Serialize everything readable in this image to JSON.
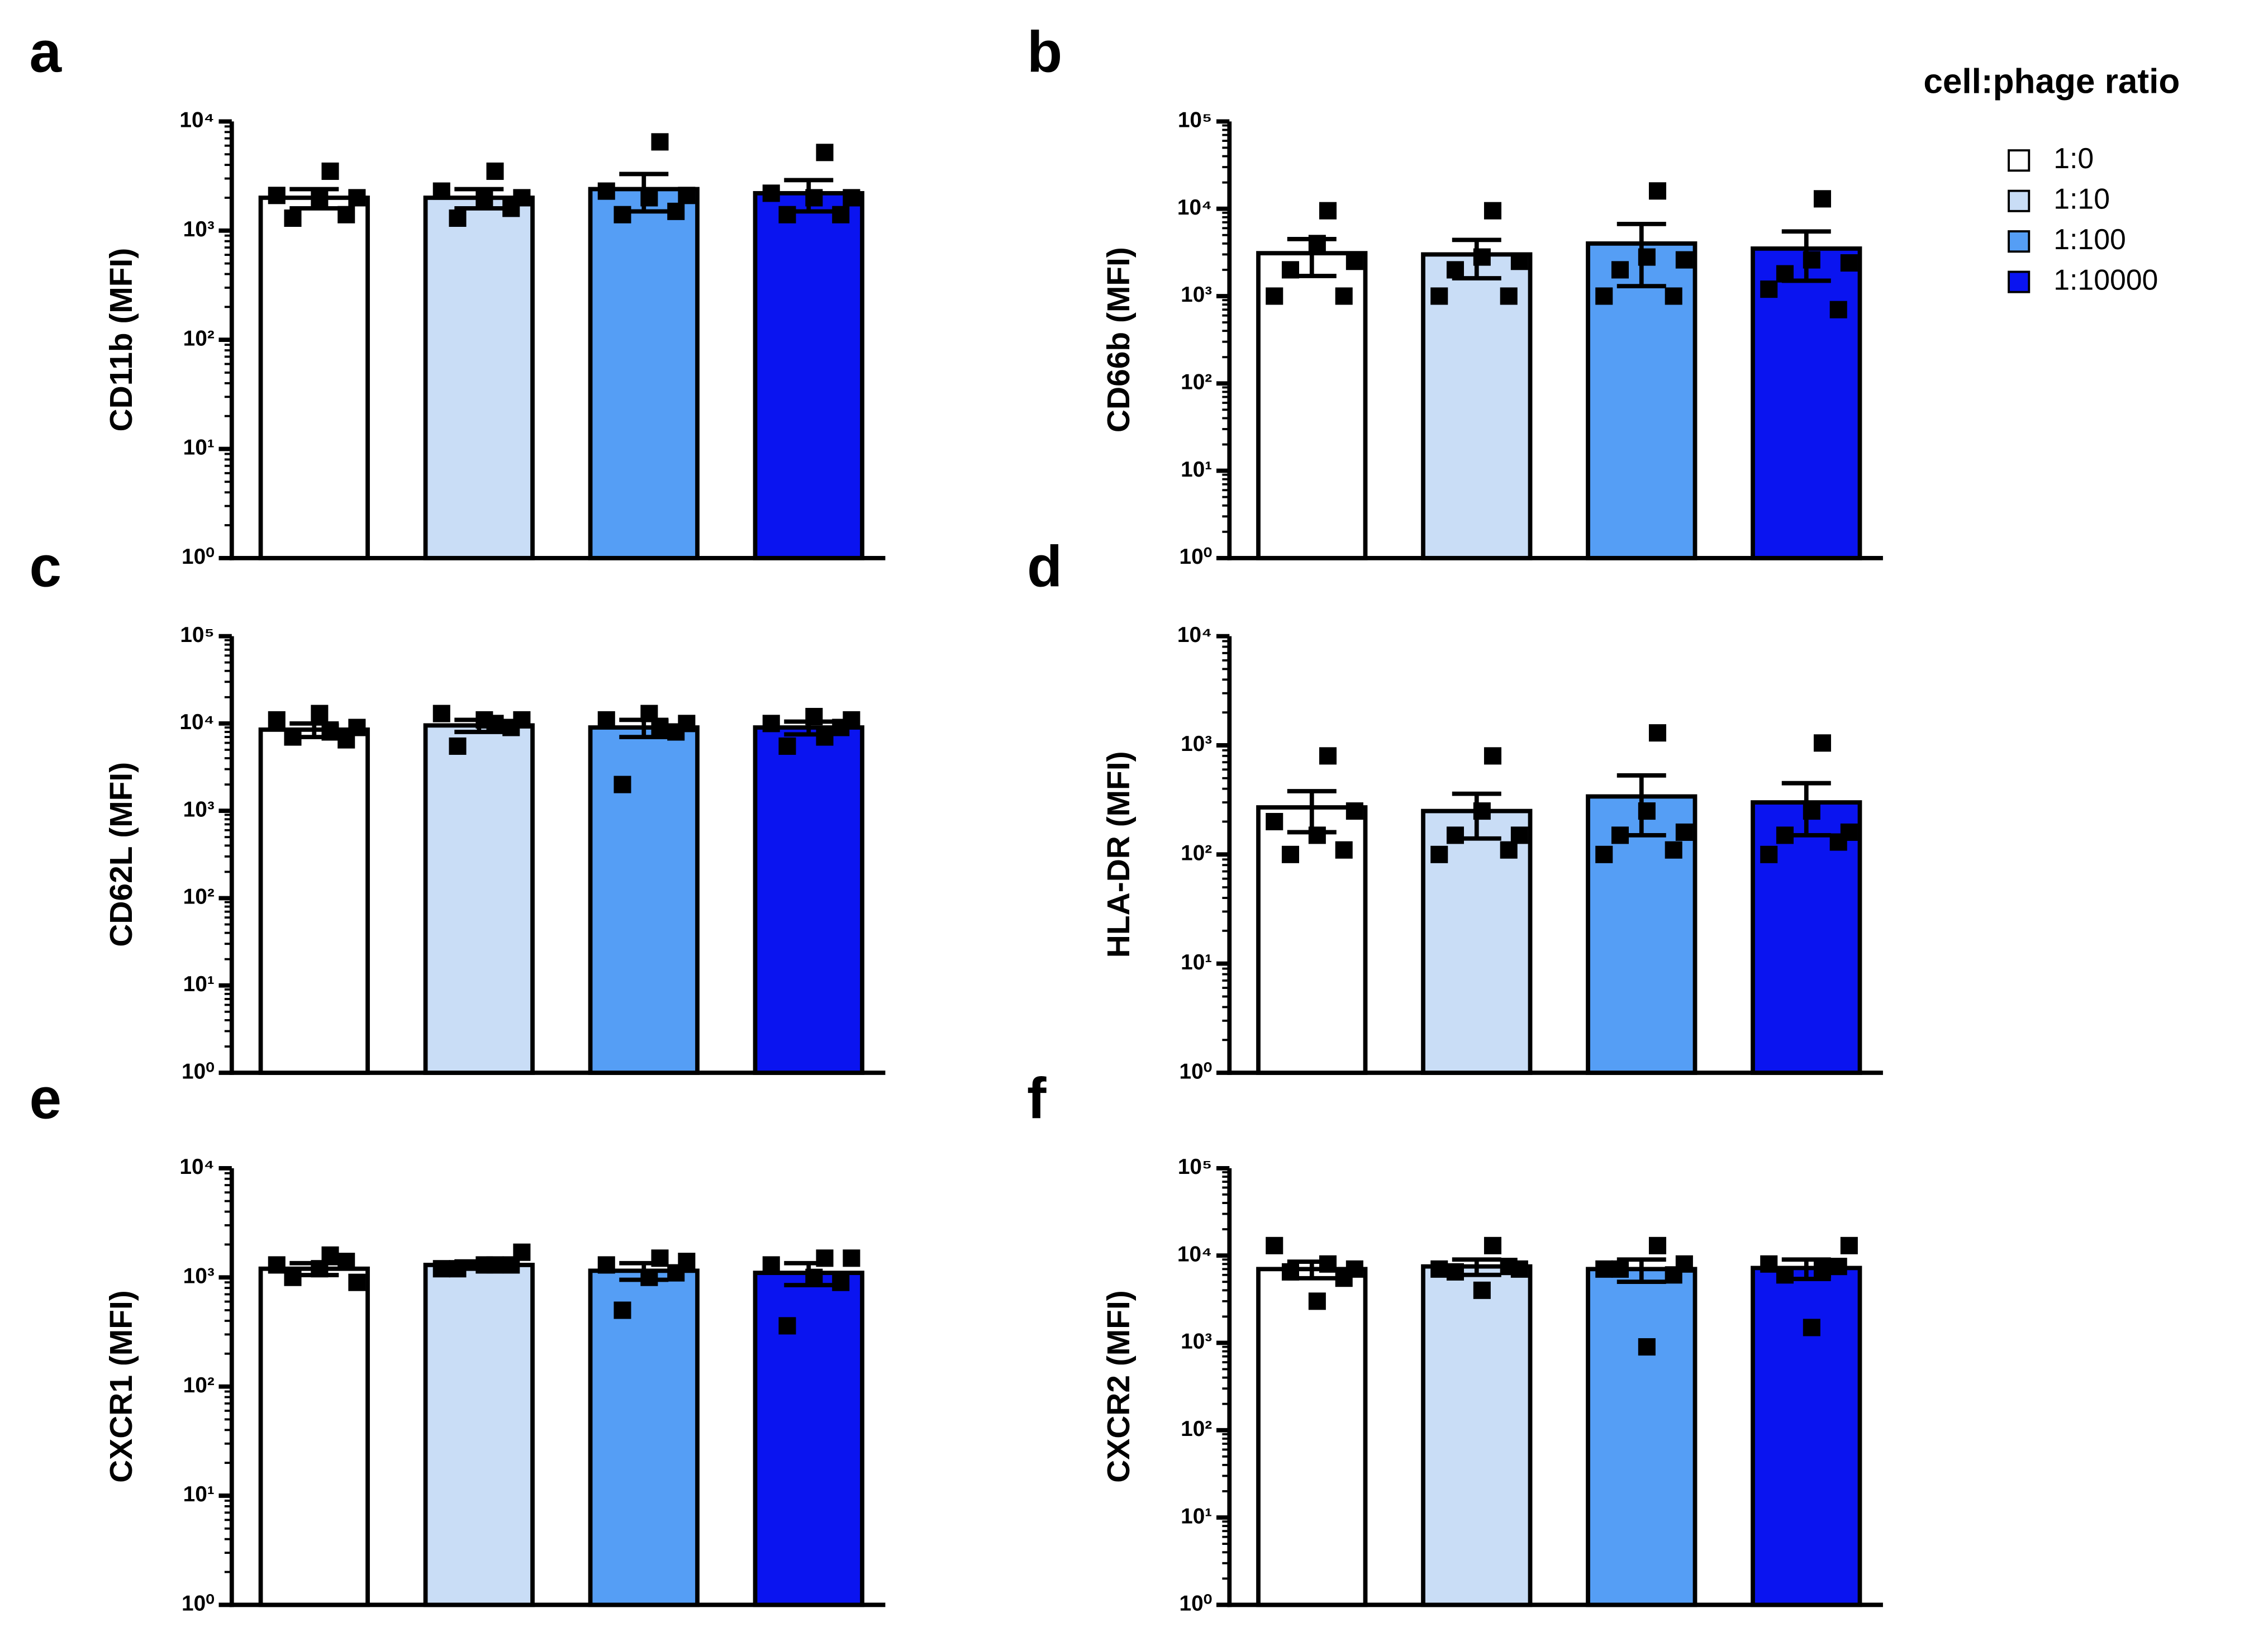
{
  "legend": {
    "title": "cell:phage ratio",
    "names": [
      "1:0",
      "1:10",
      "1:100",
      "1:10000"
    ],
    "colors": [
      "#ffffff",
      "#c9ddf6",
      "#559ef5",
      "#0a14f0"
    ]
  },
  "chart_data": [
    {
      "type": "bar",
      "panel_label": "a",
      "ylabel": "CD11b (MFI)",
      "log_scale": true,
      "ylim": [
        1,
        10000
      ],
      "yticks": [
        {
          "value": 1,
          "label": "10⁰"
        },
        {
          "value": 10,
          "label": "10¹"
        },
        {
          "value": 100,
          "label": "10²"
        },
        {
          "value": 1000,
          "label": "10³"
        },
        {
          "value": 10000,
          "label": "10⁴"
        }
      ],
      "values": [
        2000,
        2000,
        2400,
        2200
      ],
      "errors": [
        400,
        400,
        900,
        700
      ],
      "points": [
        [
          2100,
          3500,
          2000,
          1300,
          1400,
          2000
        ],
        [
          2300,
          3500,
          2000,
          1300,
          1600,
          2000
        ],
        [
          2300,
          6500,
          2000,
          1400,
          1500,
          2100
        ],
        [
          2200,
          5200,
          2000,
          1400,
          1400,
          2000
        ]
      ]
    },
    {
      "type": "bar",
      "panel_label": "b",
      "ylabel": "CD66b (MFI)",
      "log_scale": true,
      "ylim": [
        1,
        100000
      ],
      "yticks": [
        {
          "value": 1,
          "label": "10⁰"
        },
        {
          "value": 10,
          "label": "10¹"
        },
        {
          "value": 100,
          "label": "10²"
        },
        {
          "value": 1000,
          "label": "10³"
        },
        {
          "value": 10000,
          "label": "10⁴"
        },
        {
          "value": 100000,
          "label": "10⁵"
        }
      ],
      "values": [
        3100,
        3000,
        4000,
        3500
      ],
      "errors": [
        1400,
        1400,
        2700,
        2000
      ],
      "points": [
        [
          1000,
          9500,
          4000,
          2000,
          1000,
          2500
        ],
        [
          1000,
          9500,
          2800,
          2000,
          1000,
          2500
        ],
        [
          1000,
          16000,
          2800,
          2000,
          1000,
          2600
        ],
        [
          1200,
          13000,
          2600,
          1800,
          700,
          2400
        ]
      ]
    },
    {
      "type": "bar",
      "panel_label": "c",
      "ylabel": "CD62L (MFI)",
      "log_scale": true,
      "ylim": [
        1,
        100000
      ],
      "yticks": [
        {
          "value": 1,
          "label": "10⁰"
        },
        {
          "value": 10,
          "label": "10¹"
        },
        {
          "value": 100,
          "label": "10²"
        },
        {
          "value": 1000,
          "label": "10³"
        },
        {
          "value": 10000,
          "label": "10⁴"
        },
        {
          "value": 100000,
          "label": "10⁵"
        }
      ],
      "values": [
        8500,
        9500,
        9000,
        9000
      ],
      "errors": [
        1500,
        1500,
        2000,
        1500
      ],
      "points": [
        [
          11000,
          8000,
          13000,
          7000,
          6500,
          9000
        ],
        [
          13000,
          10000,
          11000,
          5500,
          9000,
          11000
        ],
        [
          11000,
          9000,
          13000,
          2000,
          8000,
          10000
        ],
        [
          10000,
          7000,
          12000,
          5500,
          9000,
          11000
        ]
      ]
    },
    {
      "type": "bar",
      "panel_label": "d",
      "ylabel": "HLA-DR (MFI)",
      "log_scale": true,
      "ylim": [
        1,
        10000
      ],
      "yticks": [
        {
          "value": 1,
          "label": "10⁰"
        },
        {
          "value": 10,
          "label": "10¹"
        },
        {
          "value": 100,
          "label": "10²"
        },
        {
          "value": 1000,
          "label": "10³"
        },
        {
          "value": 10000,
          "label": "10⁴"
        }
      ],
      "values": [
        270,
        250,
        340,
        300
      ],
      "errors": [
        110,
        110,
        190,
        150
      ],
      "points": [
        [
          200,
          800,
          150,
          100,
          110,
          250
        ],
        [
          100,
          800,
          250,
          150,
          110,
          150
        ],
        [
          100,
          1300,
          250,
          150,
          110,
          160
        ],
        [
          100,
          1050,
          250,
          150,
          130,
          160
        ]
      ]
    },
    {
      "type": "bar",
      "panel_label": "e",
      "ylabel": "CXCR1 (MFI)",
      "log_scale": true,
      "ylim": [
        1,
        10000
      ],
      "yticks": [
        {
          "value": 1,
          "label": "10⁰"
        },
        {
          "value": 10,
          "label": "10¹"
        },
        {
          "value": 100,
          "label": "10²"
        },
        {
          "value": 1000,
          "label": "10³"
        },
        {
          "value": 10000,
          "label": "10⁴"
        }
      ],
      "values": [
        1200,
        1300,
        1150,
        1100
      ],
      "errors": [
        150,
        100,
        200,
        250
      ],
      "points": [
        [
          1300,
          1600,
          1200,
          1000,
          1400,
          900
        ],
        [
          1200,
          1300,
          1300,
          1200,
          1300,
          1700
        ],
        [
          1300,
          1500,
          1000,
          500,
          1100,
          1400
        ],
        [
          1300,
          1500,
          1000,
          360,
          900,
          1500
        ]
      ]
    },
    {
      "type": "bar",
      "panel_label": "f",
      "ylabel": "CXCR2 (MFI)",
      "log_scale": true,
      "ylim": [
        1,
        100000
      ],
      "yticks": [
        {
          "value": 1,
          "label": "10⁰"
        },
        {
          "value": 10,
          "label": "10¹"
        },
        {
          "value": 100,
          "label": "10²"
        },
        {
          "value": 1000,
          "label": "10³"
        },
        {
          "value": 10000,
          "label": "10⁴"
        },
        {
          "value": 100000,
          "label": "10⁵"
        }
      ],
      "values": [
        7000,
        7500,
        7000,
        7200
      ],
      "errors": [
        1500,
        1500,
        2000,
        1800
      ],
      "points": [
        [
          13000,
          8000,
          3000,
          6500,
          5500,
          7000
        ],
        [
          7000,
          13000,
          4000,
          6500,
          7500,
          7000
        ],
        [
          7000,
          13000,
          900,
          7000,
          6000,
          8000
        ],
        [
          8000,
          7000,
          1500,
          6000,
          7500,
          13000
        ]
      ]
    }
  ]
}
